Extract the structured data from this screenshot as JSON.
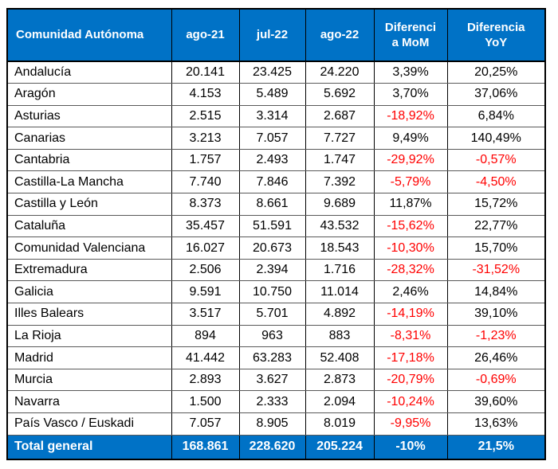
{
  "chart_data": {
    "type": "table",
    "title": "",
    "columns": [
      "Comunidad Autónoma",
      "ago-21",
      "jul-22",
      "ago-22",
      "Diferencia MoM",
      "Diferencia YoY"
    ],
    "header_lines": [
      [
        "Comunidad Autónoma"
      ],
      [
        "ago-21"
      ],
      [
        "jul-22"
      ],
      [
        "ago-22"
      ],
      [
        "Diferenci",
        "a MoM"
      ],
      [
        "Diferencia",
        "YoY"
      ]
    ],
    "rows": [
      [
        "Andalucía",
        "20.141",
        "23.425",
        "24.220",
        "3,39%",
        "20,25%"
      ],
      [
        "Aragón",
        "4.153",
        "5.489",
        "5.692",
        "3,70%",
        "37,06%"
      ],
      [
        "Asturias",
        "2.515",
        "3.314",
        "2.687",
        "-18,92%",
        "6,84%"
      ],
      [
        "Canarias",
        "3.213",
        "7.057",
        "7.727",
        "9,49%",
        "140,49%"
      ],
      [
        "Cantabria",
        "1.757",
        "2.493",
        "1.747",
        "-29,92%",
        "-0,57%"
      ],
      [
        "Castilla-La Mancha",
        "7.740",
        "7.846",
        "7.392",
        "-5,79%",
        "-4,50%"
      ],
      [
        "Castilla y León",
        "8.373",
        "8.661",
        "9.689",
        "11,87%",
        "15,72%"
      ],
      [
        "Cataluña",
        "35.457",
        "51.591",
        "43.532",
        "-15,62%",
        "22,77%"
      ],
      [
        "Comunidad Valenciana",
        "16.027",
        "20.673",
        "18.543",
        "-10,30%",
        "15,70%"
      ],
      [
        "Extremadura",
        "2.506",
        "2.394",
        "1.716",
        "-28,32%",
        "-31,52%"
      ],
      [
        "Galicia",
        "9.591",
        "10.750",
        "11.014",
        "2,46%",
        "14,84%"
      ],
      [
        "Illes Balears",
        "3.517",
        "5.701",
        "4.892",
        "-14,19%",
        "39,10%"
      ],
      [
        "La Rioja",
        "894",
        "963",
        "883",
        "-8,31%",
        "-1,23%"
      ],
      [
        "Madrid",
        "41.442",
        "63.283",
        "52.408",
        "-17,18%",
        "26,46%"
      ],
      [
        "Murcia",
        "2.893",
        "3.627",
        "2.873",
        "-20,79%",
        "-0,69%"
      ],
      [
        "Navarra",
        "1.500",
        "2.333",
        "2.094",
        "-10,24%",
        "39,60%"
      ],
      [
        "País Vasco / Euskadi",
        "7.057",
        "8.905",
        "8.019",
        "-9,95%",
        "13,63%"
      ]
    ],
    "total_row": [
      "Total general",
      "168.861",
      "228.620",
      "205.224",
      "-10%",
      "21,5%"
    ]
  },
  "colors": {
    "header_bg": "#0072C6",
    "negative_text": "#FF0000",
    "header_text": "#FFFFFF",
    "body_text": "#000000"
  }
}
